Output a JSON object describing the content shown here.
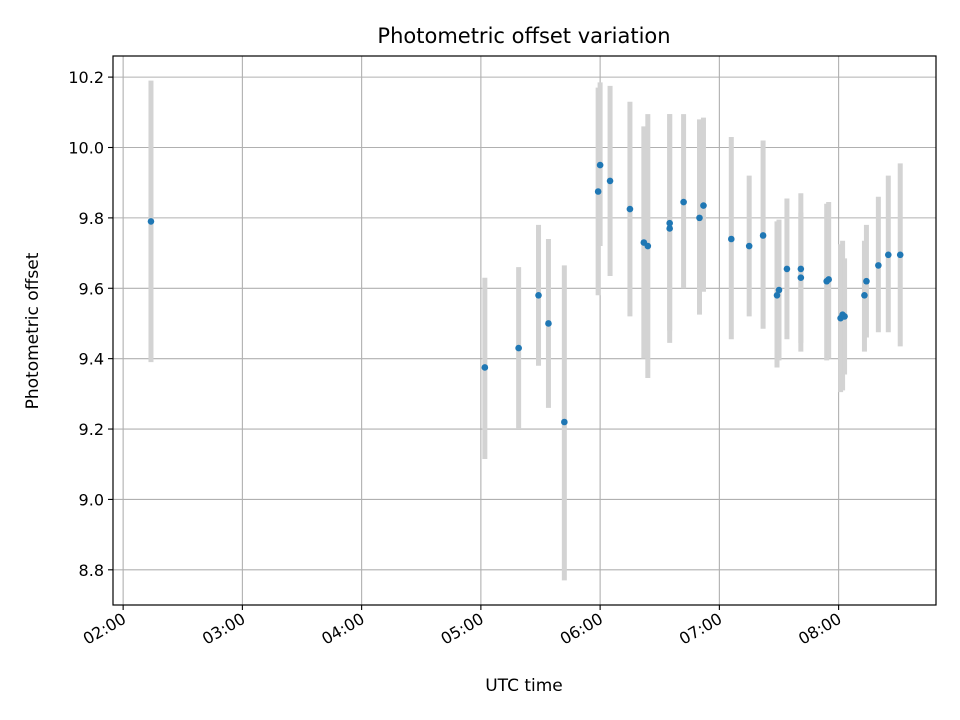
{
  "chart_data": {
    "type": "scatter",
    "title": "Photometric offset variation",
    "xlabel": "UTC time",
    "ylabel": "Photometric offset",
    "x_tick_labels": [
      "02:00",
      "03:00",
      "04:00",
      "05:00",
      "06:00",
      "07:00",
      "08:00"
    ],
    "x_ticks_min": [
      120,
      180,
      240,
      300,
      360,
      420,
      480
    ],
    "xlim_min": [
      114.9,
      529.0
    ],
    "y_ticks": [
      8.8,
      9.0,
      9.2,
      9.4,
      9.6,
      9.8,
      10.0,
      10.2
    ],
    "ylim": [
      8.7,
      10.26
    ],
    "grid": true,
    "colors": {
      "point": "#1f77b4",
      "errorbar": "#d3d3d3",
      "grid": "#b0b0b0"
    },
    "points": [
      {
        "t": "02:14",
        "y": 9.79,
        "lo": 9.39,
        "hi": 10.19
      },
      {
        "t": "05:02",
        "y": 9.375,
        "lo": 9.115,
        "hi": 9.63
      },
      {
        "t": "05:19",
        "y": 9.43,
        "lo": 9.2,
        "hi": 9.66
      },
      {
        "t": "05:29",
        "y": 9.58,
        "lo": 9.38,
        "hi": 9.78
      },
      {
        "t": "05:34",
        "y": 9.5,
        "lo": 9.26,
        "hi": 9.74
      },
      {
        "t": "05:42",
        "y": 9.22,
        "lo": 8.77,
        "hi": 9.665
      },
      {
        "t": "05:59",
        "y": 9.875,
        "lo": 9.58,
        "hi": 10.17
      },
      {
        "t": "06:00",
        "y": 9.95,
        "lo": 9.72,
        "hi": 10.185
      },
      {
        "t": "06:05",
        "y": 9.905,
        "lo": 9.635,
        "hi": 10.175
      },
      {
        "t": "06:15",
        "y": 9.825,
        "lo": 9.52,
        "hi": 10.13
      },
      {
        "t": "06:22",
        "y": 9.73,
        "lo": 9.4,
        "hi": 10.06
      },
      {
        "t": "06:24",
        "y": 9.72,
        "lo": 9.345,
        "hi": 10.095
      },
      {
        "t": "06:35",
        "y": 9.785,
        "lo": 9.48,
        "hi": 10.095
      },
      {
        "t": "06:35",
        "y": 9.77,
        "lo": 9.445,
        "hi": 10.095
      },
      {
        "t": "06:42",
        "y": 9.845,
        "lo": 9.6,
        "hi": 10.095
      },
      {
        "t": "06:50",
        "y": 9.8,
        "lo": 9.525,
        "hi": 10.08
      },
      {
        "t": "06:52",
        "y": 9.835,
        "lo": 9.59,
        "hi": 10.085
      },
      {
        "t": "07:06",
        "y": 9.74,
        "lo": 9.455,
        "hi": 10.03
      },
      {
        "t": "07:15",
        "y": 9.72,
        "lo": 9.52,
        "hi": 9.92
      },
      {
        "t": "07:22",
        "y": 9.75,
        "lo": 9.485,
        "hi": 10.02
      },
      {
        "t": "07:29",
        "y": 9.58,
        "lo": 9.375,
        "hi": 9.79
      },
      {
        "t": "07:30",
        "y": 9.595,
        "lo": 9.395,
        "hi": 9.795
      },
      {
        "t": "07:34",
        "y": 9.655,
        "lo": 9.455,
        "hi": 9.855
      },
      {
        "t": "07:41",
        "y": 9.63,
        "lo": 9.445,
        "hi": 9.815
      },
      {
        "t": "07:41",
        "y": 9.655,
        "lo": 9.42,
        "hi": 9.87
      },
      {
        "t": "07:54",
        "y": 9.62,
        "lo": 9.395,
        "hi": 9.84
      },
      {
        "t": "07:55",
        "y": 9.625,
        "lo": 9.4,
        "hi": 9.845
      },
      {
        "t": "08:01",
        "y": 9.515,
        "lo": 9.305,
        "hi": 9.725
      },
      {
        "t": "08:02",
        "y": 9.525,
        "lo": 9.31,
        "hi": 9.735
      },
      {
        "t": "08:03",
        "y": 9.52,
        "lo": 9.355,
        "hi": 9.685
      },
      {
        "t": "08:13",
        "y": 9.58,
        "lo": 9.42,
        "hi": 9.735
      },
      {
        "t": "08:14",
        "y": 9.62,
        "lo": 9.46,
        "hi": 9.78
      },
      {
        "t": "08:20",
        "y": 9.665,
        "lo": 9.475,
        "hi": 9.86
      },
      {
        "t": "08:25",
        "y": 9.695,
        "lo": 9.475,
        "hi": 9.92
      },
      {
        "t": "08:31",
        "y": 9.695,
        "lo": 9.435,
        "hi": 9.955
      }
    ]
  }
}
